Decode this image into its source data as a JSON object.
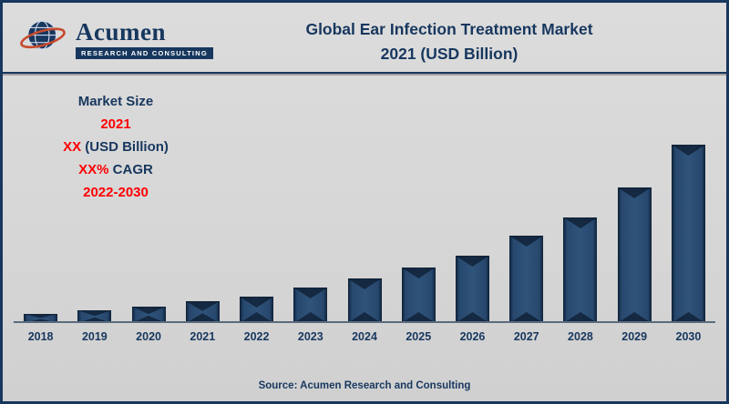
{
  "page": {
    "background": "#d6d6d6",
    "border_color": "#17375e",
    "accent_navy": "#17375e",
    "accent_red": "#fe0000",
    "bar_color": "#1d3b61"
  },
  "header": {
    "logo": {
      "brand": "Acumen",
      "tagline": "RESEARCH AND CONSULTING",
      "globe_icon": "globe-with-orange-ring"
    },
    "title_line1": "Global Ear Infection Treatment Market",
    "title_line2": "2021 (USD Billion)"
  },
  "annotation": {
    "line1": "Market Size",
    "line2": "2021",
    "line3_red": "XX",
    "line3_navy": " (USD Billion)",
    "line4_red": "XX%",
    "line4_navy": " CAGR",
    "line5": "2022-2030"
  },
  "footer": {
    "source": "Source: Acumen Research and Consulting"
  },
  "chart_data": {
    "type": "bar",
    "title": "Global Ear Infection Treatment Market 2021 (USD Billion)",
    "categories": [
      "2018",
      "2019",
      "2020",
      "2021",
      "2022",
      "2023",
      "2024",
      "2025",
      "2026",
      "2027",
      "2028",
      "2029",
      "2030"
    ],
    "values": [
      5,
      7,
      9,
      12,
      15,
      20,
      25,
      31,
      38,
      49,
      59,
      76,
      100
    ],
    "values_unit": "relative bar height, percent of tallest (2030) bar; numeric values not labeled on chart (masked as XX)",
    "value_labels_shown": false,
    "xlabel": "",
    "ylabel": "",
    "ylim": [
      0,
      100
    ],
    "grid": false,
    "legend": false,
    "bar_color": "#1d3b61",
    "axis_label_color": "#17375e"
  }
}
